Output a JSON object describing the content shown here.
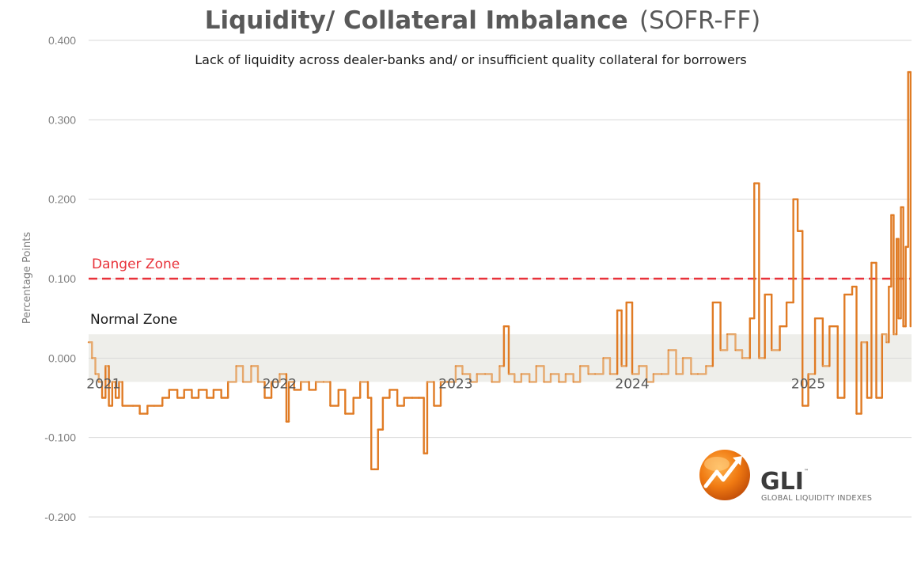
{
  "chart_data": {
    "type": "line",
    "title": "Liquidity/ Collateral Imbalance",
    "title_suffix": "(SOFR-FF)",
    "subtitle": "Lack of liquidity across dealer-banks and/ or insufficient quality collateral for borrowers",
    "ylabel": "Percentage Points",
    "ylim": [
      -0.2,
      0.4
    ],
    "yticks": [
      0.4,
      0.3,
      0.2,
      0.1,
      0.0,
      -0.1,
      -0.2
    ],
    "ytick_labels": [
      "0.400",
      "0.300",
      "0.200",
      "0.100",
      "0.000",
      "-0.100",
      "-0.200"
    ],
    "xlim": [
      "2021-03-01",
      "2025-11-01"
    ],
    "xtick_labels": [
      {
        "label": "2021",
        "date": "2021-04-01"
      },
      {
        "label": "2022",
        "date": "2022-04-01"
      },
      {
        "label": "2023",
        "date": "2023-04-01"
      },
      {
        "label": "2024",
        "date": "2024-04-01"
      },
      {
        "label": "2025",
        "date": "2025-04-01"
      }
    ],
    "grid": true,
    "reference_line": {
      "label": "Danger Zone",
      "value": 0.1,
      "color": "#e8323a",
      "style": "dashed"
    },
    "normal_band": {
      "label": "Normal Zone",
      "range": [
        -0.03,
        0.03
      ],
      "color": "#eeeeea"
    },
    "line_color": "#e07b24",
    "line_color_in_band": "#e6a86c",
    "series": [
      {
        "points": [
          [
            "2021-03-01",
            0.02
          ],
          [
            "2021-03-08",
            0.0
          ],
          [
            "2021-03-15",
            -0.02
          ],
          [
            "2021-03-22",
            -0.03
          ],
          [
            "2021-03-29",
            -0.05
          ],
          [
            "2021-04-05",
            -0.01
          ],
          [
            "2021-04-12",
            -0.06
          ],
          [
            "2021-04-19",
            -0.03
          ],
          [
            "2021-04-26",
            -0.05
          ],
          [
            "2021-05-03",
            -0.03
          ],
          [
            "2021-05-10",
            -0.06
          ],
          [
            "2021-06-01",
            -0.06
          ],
          [
            "2021-06-15",
            -0.07
          ],
          [
            "2021-07-01",
            -0.06
          ],
          [
            "2021-07-15",
            -0.06
          ],
          [
            "2021-08-01",
            -0.05
          ],
          [
            "2021-08-15",
            -0.04
          ],
          [
            "2021-09-01",
            -0.05
          ],
          [
            "2021-09-15",
            -0.04
          ],
          [
            "2021-10-01",
            -0.05
          ],
          [
            "2021-10-15",
            -0.04
          ],
          [
            "2021-11-01",
            -0.05
          ],
          [
            "2021-11-15",
            -0.04
          ],
          [
            "2021-12-01",
            -0.05
          ],
          [
            "2021-12-15",
            -0.03
          ],
          [
            "2022-01-01",
            -0.01
          ],
          [
            "2022-01-15",
            -0.03
          ],
          [
            "2022-02-01",
            -0.01
          ],
          [
            "2022-02-15",
            -0.03
          ],
          [
            "2022-03-01",
            -0.05
          ],
          [
            "2022-03-15",
            -0.03
          ],
          [
            "2022-04-01",
            -0.02
          ],
          [
            "2022-04-15",
            -0.08
          ],
          [
            "2022-04-20",
            -0.03
          ],
          [
            "2022-05-01",
            -0.04
          ],
          [
            "2022-05-15",
            -0.03
          ],
          [
            "2022-06-01",
            -0.04
          ],
          [
            "2022-06-15",
            -0.03
          ],
          [
            "2022-07-01",
            -0.03
          ],
          [
            "2022-07-15",
            -0.06
          ],
          [
            "2022-08-01",
            -0.04
          ],
          [
            "2022-08-15",
            -0.07
          ],
          [
            "2022-09-01",
            -0.05
          ],
          [
            "2022-09-15",
            -0.03
          ],
          [
            "2022-10-01",
            -0.05
          ],
          [
            "2022-10-08",
            -0.14
          ],
          [
            "2022-10-15",
            -0.14
          ],
          [
            "2022-10-22",
            -0.09
          ],
          [
            "2022-11-01",
            -0.05
          ],
          [
            "2022-11-15",
            -0.04
          ],
          [
            "2022-12-01",
            -0.06
          ],
          [
            "2022-12-15",
            -0.05
          ],
          [
            "2023-01-01",
            -0.05
          ],
          [
            "2023-01-15",
            -0.05
          ],
          [
            "2023-01-25",
            -0.12
          ],
          [
            "2023-02-01",
            -0.03
          ],
          [
            "2023-02-15",
            -0.06
          ],
          [
            "2023-03-01",
            -0.03
          ],
          [
            "2023-03-15",
            -0.03
          ],
          [
            "2023-04-01",
            -0.01
          ],
          [
            "2023-04-15",
            -0.02
          ],
          [
            "2023-05-01",
            -0.03
          ],
          [
            "2023-05-15",
            -0.02
          ],
          [
            "2023-06-01",
            -0.02
          ],
          [
            "2023-06-15",
            -0.03
          ],
          [
            "2023-07-01",
            -0.01
          ],
          [
            "2023-07-10",
            0.04
          ],
          [
            "2023-07-20",
            -0.02
          ],
          [
            "2023-08-01",
            -0.03
          ],
          [
            "2023-08-15",
            -0.02
          ],
          [
            "2023-09-01",
            -0.03
          ],
          [
            "2023-09-15",
            -0.01
          ],
          [
            "2023-10-01",
            -0.03
          ],
          [
            "2023-10-15",
            -0.02
          ],
          [
            "2023-11-01",
            -0.03
          ],
          [
            "2023-11-15",
            -0.02
          ],
          [
            "2023-12-01",
            -0.03
          ],
          [
            "2023-12-15",
            -0.01
          ],
          [
            "2024-01-01",
            -0.02
          ],
          [
            "2024-01-15",
            -0.02
          ],
          [
            "2024-02-01",
            0.0
          ],
          [
            "2024-02-15",
            -0.02
          ],
          [
            "2024-03-01",
            0.06
          ],
          [
            "2024-03-10",
            -0.01
          ],
          [
            "2024-03-20",
            0.07
          ],
          [
            "2024-04-01",
            -0.02
          ],
          [
            "2024-04-15",
            -0.01
          ],
          [
            "2024-05-01",
            -0.03
          ],
          [
            "2024-05-15",
            -0.02
          ],
          [
            "2024-06-01",
            -0.02
          ],
          [
            "2024-06-15",
            0.01
          ],
          [
            "2024-07-01",
            -0.02
          ],
          [
            "2024-07-15",
            0.0
          ],
          [
            "2024-08-01",
            -0.02
          ],
          [
            "2024-08-15",
            -0.02
          ],
          [
            "2024-09-01",
            -0.01
          ],
          [
            "2024-09-15",
            0.07
          ],
          [
            "2024-10-01",
            0.01
          ],
          [
            "2024-10-15",
            0.03
          ],
          [
            "2024-11-01",
            0.01
          ],
          [
            "2024-11-15",
            0.0
          ],
          [
            "2024-12-01",
            0.05
          ],
          [
            "2024-12-10",
            0.22
          ],
          [
            "2024-12-20",
            0.0
          ],
          [
            "2025-01-01",
            0.08
          ],
          [
            "2025-01-15",
            0.01
          ],
          [
            "2025-02-01",
            0.04
          ],
          [
            "2025-02-15",
            0.07
          ],
          [
            "2025-03-01",
            0.2
          ],
          [
            "2025-03-10",
            0.16
          ],
          [
            "2025-03-20",
            -0.06
          ],
          [
            "2025-04-01",
            -0.02
          ],
          [
            "2025-04-15",
            0.05
          ],
          [
            "2025-05-01",
            -0.01
          ],
          [
            "2025-05-15",
            0.04
          ],
          [
            "2025-06-01",
            -0.05
          ],
          [
            "2025-06-15",
            0.08
          ],
          [
            "2025-07-01",
            0.09
          ],
          [
            "2025-07-10",
            -0.07
          ],
          [
            "2025-07-20",
            0.02
          ],
          [
            "2025-08-01",
            -0.05
          ],
          [
            "2025-08-10",
            0.12
          ],
          [
            "2025-08-20",
            -0.05
          ],
          [
            "2025-09-01",
            0.03
          ],
          [
            "2025-09-10",
            0.02
          ],
          [
            "2025-09-15",
            0.09
          ],
          [
            "2025-09-20",
            0.18
          ],
          [
            "2025-09-25",
            0.03
          ],
          [
            "2025-10-01",
            0.15
          ],
          [
            "2025-10-05",
            0.05
          ],
          [
            "2025-10-10",
            0.19
          ],
          [
            "2025-10-15",
            0.04
          ],
          [
            "2025-10-20",
            0.14
          ],
          [
            "2025-10-25",
            0.36
          ],
          [
            "2025-10-30",
            0.04
          ]
        ]
      }
    ]
  },
  "logo": {
    "name": "GLI",
    "trademark": "™",
    "tagline": "GLOBAL LIQUIDITY INDEXES"
  }
}
